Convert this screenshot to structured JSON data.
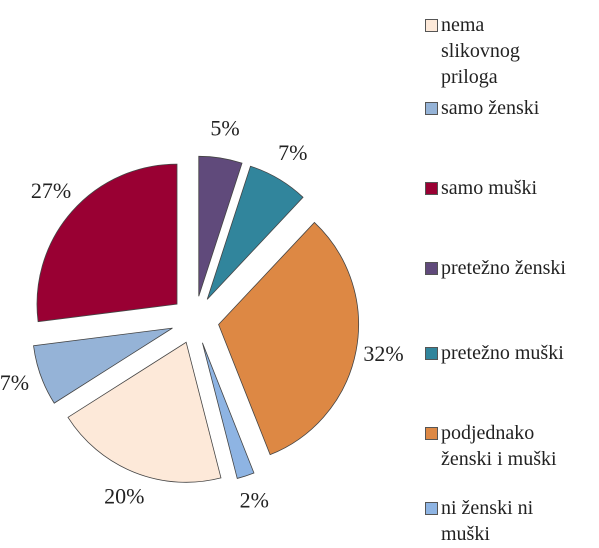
{
  "chart_data": {
    "type": "pie",
    "categories": [
      "nema slikovnog priloga",
      "samo ženski",
      "samo muški",
      "pretežno ženski",
      "pretežno muški",
      "podjednako ženski i muški",
      "ni ženski ni muški"
    ],
    "values": [
      20,
      7,
      27,
      5,
      7,
      32,
      2
    ],
    "value_labels": [
      "20%",
      "7%",
      "27%",
      "5%",
      "7%",
      "32%",
      "2%"
    ],
    "colors": [
      "#fde9d9",
      "#95b3d7",
      "#990033",
      "#604a7b",
      "#31859c",
      "#dd8844",
      "#8eb4e3"
    ],
    "legend": "right"
  }
}
